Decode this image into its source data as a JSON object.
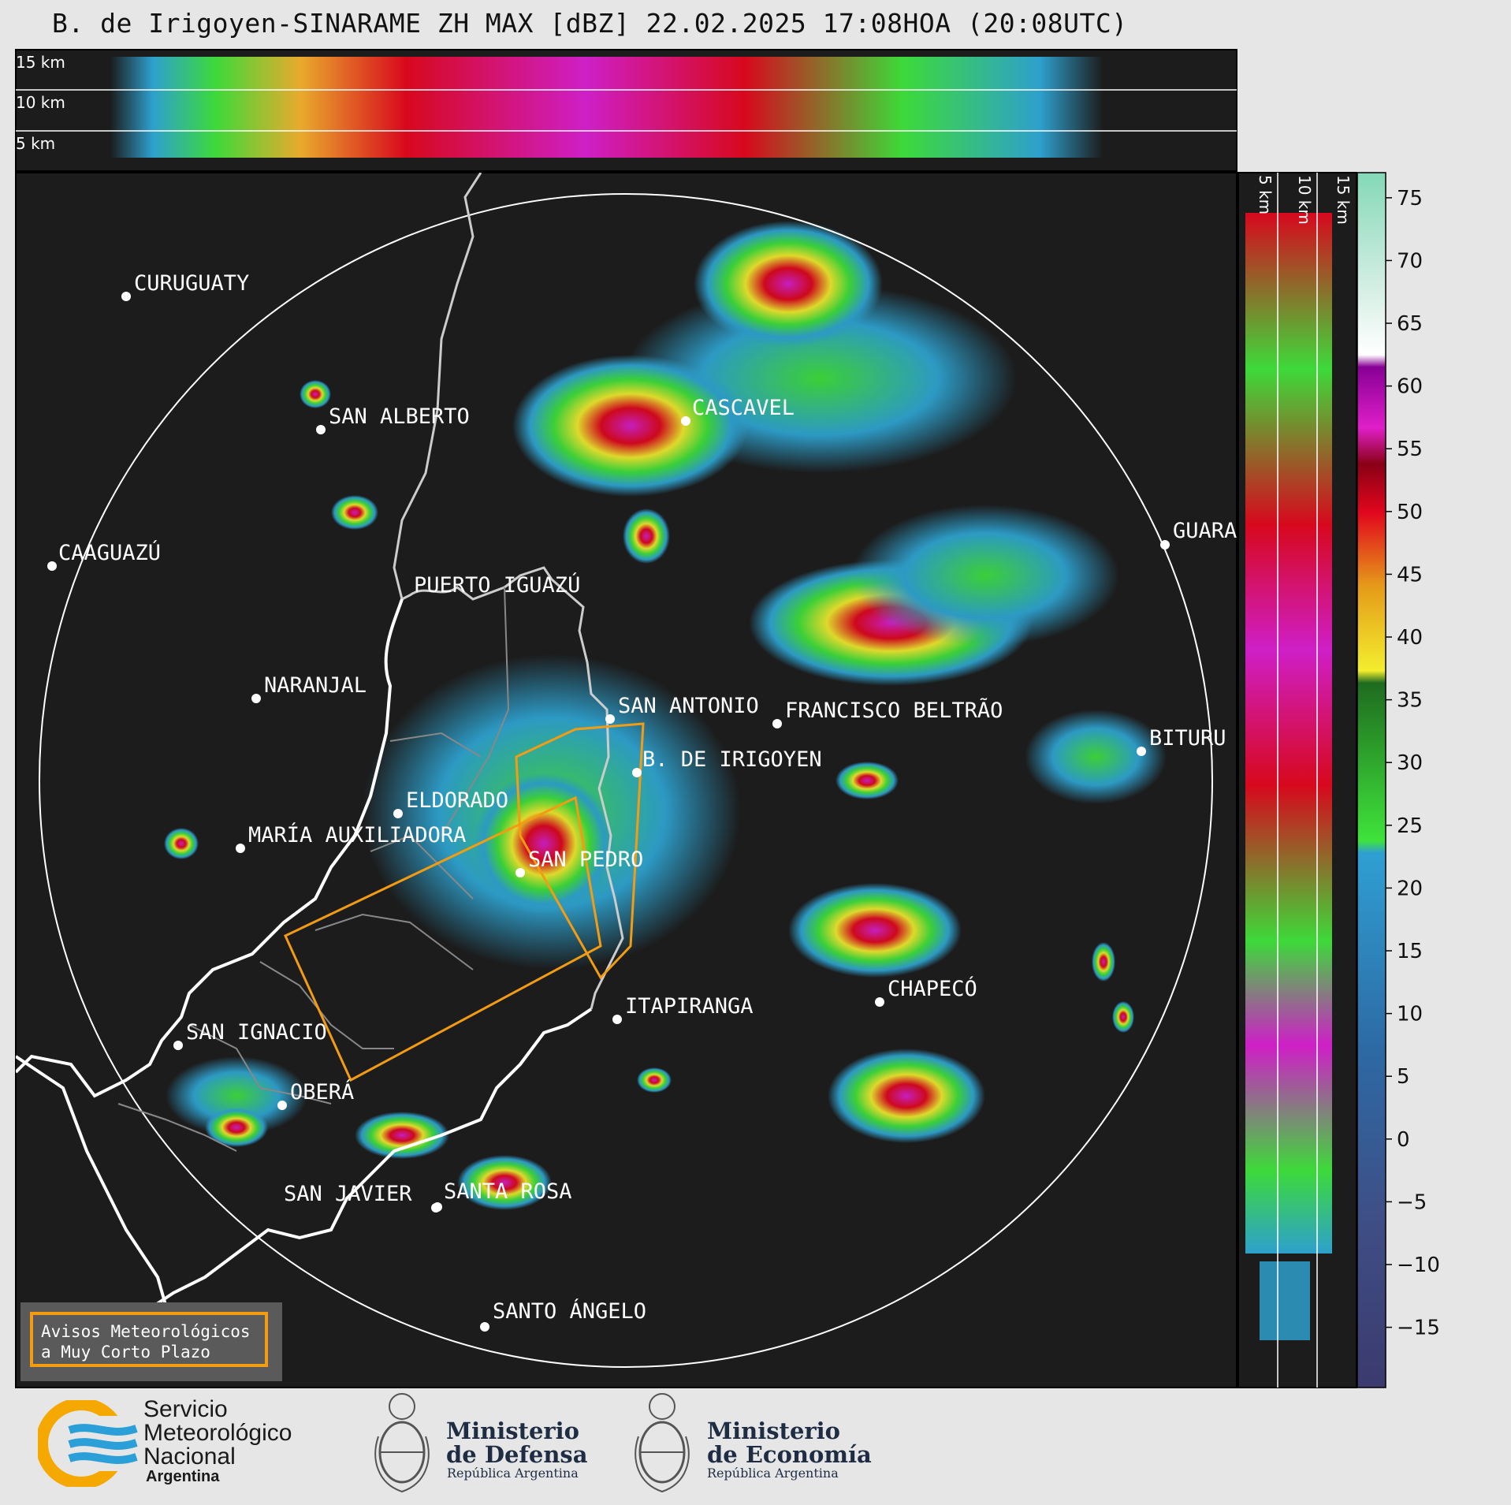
{
  "title": "B. de Irigoyen-SINARAME ZH MAX [dBZ] 22.02.2025 17:08HOA (20:08UTC)",
  "top_panel_height_labels": [
    "15 km",
    "10 km",
    "5 km"
  ],
  "side_panel_height_labels": [
    "5 km",
    "10 km",
    "15 km"
  ],
  "colorbar": {
    "unit": "dBZ",
    "ticks": [
      75,
      70,
      65,
      60,
      55,
      50,
      45,
      40,
      35,
      30,
      25,
      20,
      15,
      10,
      5,
      0,
      "−5",
      "−10",
      "−15"
    ]
  },
  "cities": [
    {
      "name": "CURUGUATY"
    },
    {
      "name": "SAN ALBERTO"
    },
    {
      "name": "CASCAVEL"
    },
    {
      "name": "CAAGUAZÚ"
    },
    {
      "name": "GUARA"
    },
    {
      "name": "PUERTO IGUAZÚ"
    },
    {
      "name": "NARANJAL"
    },
    {
      "name": "SAN ANTONIO"
    },
    {
      "name": "FRANCISCO BELTRÃO"
    },
    {
      "name": "BITURU"
    },
    {
      "name": "B. DE IRIGOYEN"
    },
    {
      "name": "ELDORADO"
    },
    {
      "name": "MARÍA AUXILIADORA"
    },
    {
      "name": "SAN PEDRO"
    },
    {
      "name": "CHAPECÓ"
    },
    {
      "name": "ITAPIRANGA"
    },
    {
      "name": "SAN IGNACIO"
    },
    {
      "name": "OBERÁ"
    },
    {
      "name": "SAN JAVIER"
    },
    {
      "name": "SANTA ROSA"
    },
    {
      "name": "SANTO ÁNGELO"
    }
  ],
  "legend": {
    "line1": "Avisos Meteorológicos",
    "line2": "a Muy Corto Plazo",
    "color": "#f39c12"
  },
  "logos": {
    "smn": {
      "line1": "Servicio",
      "line2": "Meteorológico",
      "line3": "Nacional",
      "line4": "Argentina"
    },
    "defensa": {
      "line1": "Ministerio",
      "line2": "de Defensa",
      "line3": "República Argentina"
    },
    "economia": {
      "line1": "Ministerio",
      "line2": "de Economía",
      "line3": "República Argentina"
    }
  },
  "colors": {
    "map_background": "#1c1c1c",
    "range_ring": "#ffffff",
    "warning_polygon": "#f39c12",
    "border_line": "#ffffff"
  }
}
